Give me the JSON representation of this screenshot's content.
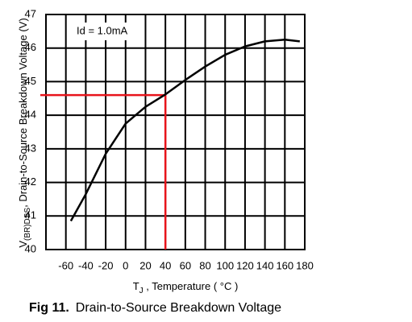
{
  "chart_data": {
    "type": "line",
    "y_label": {
      "main": "V",
      "sub": "(BR)DSS",
      "rest": ", Drain-to-Source Breakdown Voltage (V)"
    },
    "x_label": {
      "main": "T",
      "sub": "J",
      "rest": " , Temperature ( °C )"
    },
    "annotation": "Id = 1.0mA",
    "caption": {
      "label": "Fig 11.",
      "text": "Drain-to-Source Breakdown Voltage"
    },
    "x": [
      -55,
      -40,
      -20,
      0,
      20,
      40,
      60,
      80,
      100,
      120,
      140,
      160,
      175
    ],
    "series": [
      {
        "color": "#000000",
        "values": [
          40.85,
          41.65,
          42.85,
          43.75,
          44.25,
          44.62,
          45.05,
          45.45,
          45.8,
          46.05,
          46.2,
          46.25,
          46.2
        ]
      }
    ],
    "reference": {
      "x": 40,
      "y": 44.6,
      "color": "#e8141b"
    },
    "xlim": [
      -80,
      180
    ],
    "xticks": [
      -60,
      -40,
      -20,
      0,
      20,
      40,
      60,
      80,
      100,
      120,
      140,
      160,
      180
    ],
    "ylim": [
      40,
      47
    ],
    "yticks": [
      40,
      41,
      42,
      43,
      44,
      45,
      46,
      47
    ],
    "grid": true
  }
}
